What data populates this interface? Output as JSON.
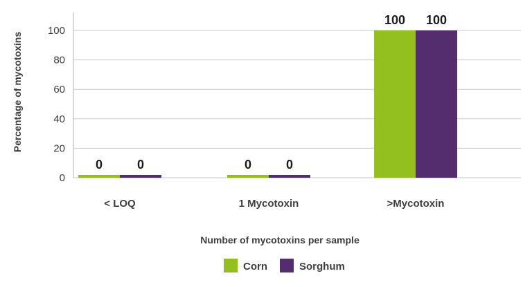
{
  "chart_data": {
    "type": "bar",
    "categories": [
      "< LOQ",
      "1 Mycotoxin",
      ">Mycotoxin"
    ],
    "series": [
      {
        "name": "Corn",
        "values": [
          0,
          0,
          100
        ],
        "color": "#93c01f"
      },
      {
        "name": "Sorghum",
        "values": [
          0,
          0,
          100
        ],
        "color": "#532d6d"
      }
    ],
    "data_labels": [
      [
        "0",
        "0",
        "100"
      ],
      [
        "0",
        "0",
        "100"
      ]
    ],
    "xlabel": "Number of mycotoxins per sample",
    "ylabel": "Percentage of mycotoxins",
    "ylim": [
      0,
      100
    ],
    "yticks": [
      0,
      20,
      40,
      60,
      80,
      100
    ],
    "grid": true,
    "legend": "bottom-center"
  }
}
